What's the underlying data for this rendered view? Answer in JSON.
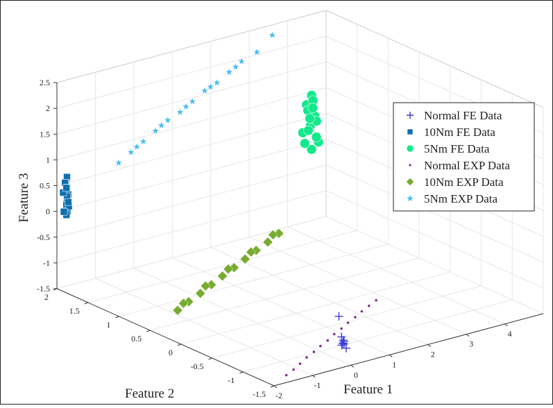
{
  "chart_data": {
    "type": "scatter",
    "projection": "3d",
    "grid": true,
    "legend_position": "top-right",
    "title": "",
    "xlabel": "Feature 1",
    "ylabel": "Feature 2",
    "zlabel": "Feature 3",
    "xlim": [
      -2,
      5
    ],
    "ylim": [
      -1.5,
      2
    ],
    "zlim": [
      -1.5,
      2.5
    ],
    "x_ticks": [
      "-2",
      "-1",
      "0",
      "1",
      "2",
      "3",
      "4"
    ],
    "y_ticks": [
      "-1.5",
      "-1",
      "-0.5",
      "0",
      "0.5",
      "1",
      "1.5",
      "2"
    ],
    "z_ticks": [
      "-1.5",
      "-1",
      "-0.5",
      "0",
      "0.5",
      "1",
      "1.5",
      "2",
      "2.5"
    ],
    "series": [
      {
        "name": "Normal FE Data",
        "marker": "plus",
        "color": "#3a3ad6",
        "points": [
          [
            -0.1,
            -1.45,
            -1.05
          ],
          [
            -0.05,
            -1.42,
            -1.12
          ],
          [
            -0.15,
            -1.47,
            -1.0
          ],
          [
            -0.08,
            -1.4,
            -1.15
          ],
          [
            -0.12,
            -1.44,
            -1.08
          ],
          [
            -0.06,
            -1.46,
            -1.18
          ],
          [
            -0.1,
            -1.41,
            -0.98
          ],
          [
            -0.2,
            -1.43,
            -0.55
          ]
        ]
      },
      {
        "name": "10Nm FE Data",
        "marker": "square",
        "color": "#0e6fae",
        "points": [
          [
            -1.9,
            1.9,
            0.7
          ],
          [
            -1.85,
            1.95,
            0.55
          ],
          [
            -1.95,
            1.85,
            0.4
          ],
          [
            -1.9,
            1.9,
            0.25
          ],
          [
            -1.8,
            1.97,
            0.1
          ],
          [
            -1.92,
            1.88,
            0.05
          ],
          [
            -1.88,
            1.92,
            -0.05
          ],
          [
            -1.85,
            1.93,
            0.3
          ],
          [
            -1.95,
            1.9,
            0.6
          ],
          [
            -1.82,
            1.95,
            0.45
          ],
          [
            -1.9,
            1.87,
            0.15
          ],
          [
            -1.87,
            1.98,
            0.35
          ],
          [
            -1.93,
            1.89,
            0.5
          ],
          [
            -1.85,
            1.91,
            0.2
          ],
          [
            -1.9,
            1.95,
            0.0
          ]
        ]
      },
      {
        "name": "5Nm FE Data",
        "marker": "circle",
        "color": "#12e98a",
        "points": [
          [
            4.3,
            1.8,
            1.1
          ],
          [
            4.25,
            1.85,
            0.9
          ],
          [
            4.35,
            1.78,
            0.7
          ],
          [
            4.3,
            1.82,
            0.5
          ],
          [
            4.2,
            1.88,
            0.35
          ],
          [
            4.4,
            1.75,
            0.2
          ],
          [
            4.3,
            1.8,
            0.05
          ],
          [
            4.25,
            1.83,
            0.8
          ],
          [
            4.38,
            1.77,
            0.6
          ],
          [
            4.28,
            1.84,
            0.4
          ],
          [
            4.32,
            1.79,
            1.0
          ],
          [
            4.22,
            1.86,
            0.15
          ],
          [
            4.36,
            1.76,
            0.3
          ],
          [
            4.27,
            1.81,
            0.65
          ],
          [
            4.33,
            1.8,
            0.85
          ]
        ]
      },
      {
        "name": "Normal EXP Data",
        "marker": "dot",
        "color": "#7e2f8e",
        "points": [
          [
            -1.6,
            -1.45,
            -1.4
          ],
          [
            -1.0,
            -1.3,
            -1.38
          ],
          [
            -0.4,
            -1.15,
            -1.35
          ],
          [
            0.2,
            -1.0,
            -1.33
          ],
          [
            0.8,
            -0.85,
            -1.3
          ],
          [
            1.4,
            -0.7,
            -1.28
          ],
          [
            2.0,
            -0.55,
            -1.26
          ],
          [
            -1.3,
            -1.38,
            -1.39
          ],
          [
            -0.7,
            -1.22,
            -1.36
          ],
          [
            -0.1,
            -1.07,
            -1.34
          ],
          [
            0.5,
            -0.92,
            -1.31
          ],
          [
            1.1,
            -0.77,
            -1.29
          ],
          [
            1.7,
            -0.62,
            -1.27
          ],
          [
            2.3,
            -0.48,
            -1.25
          ]
        ]
      },
      {
        "name": "10Nm EXP Data",
        "marker": "diamond",
        "color": "#77ac30",
        "points": [
          [
            -1.2,
            0.55,
            -1.3
          ],
          [
            -0.8,
            0.62,
            -1.25
          ],
          [
            -0.4,
            0.68,
            -1.2
          ],
          [
            0.0,
            0.75,
            -1.15
          ],
          [
            0.4,
            0.82,
            -1.1
          ],
          [
            0.8,
            0.88,
            -1.05
          ],
          [
            1.2,
            0.95,
            -1.0
          ],
          [
            1.6,
            1.02,
            -0.95
          ],
          [
            2.0,
            1.08,
            -0.9
          ],
          [
            2.4,
            1.15,
            -0.85
          ],
          [
            -1.0,
            0.58,
            -1.22
          ],
          [
            -0.2,
            0.72,
            -1.12
          ],
          [
            0.6,
            0.85,
            -1.02
          ],
          [
            1.4,
            0.98,
            -0.92
          ],
          [
            2.2,
            1.12,
            -0.82
          ]
        ]
      },
      {
        "name": "5Nm EXP Data",
        "marker": "star",
        "color": "#4dbeee",
        "points": [
          [
            -1.2,
            1.5,
            1.05
          ],
          [
            -0.8,
            1.55,
            1.15
          ],
          [
            -0.4,
            1.6,
            1.25
          ],
          [
            0.0,
            1.65,
            1.35
          ],
          [
            0.4,
            1.7,
            1.45
          ],
          [
            0.8,
            1.75,
            1.5
          ],
          [
            1.2,
            1.8,
            1.6
          ],
          [
            1.6,
            1.85,
            1.7
          ],
          [
            2.0,
            1.9,
            1.75
          ],
          [
            2.4,
            1.95,
            1.85
          ],
          [
            2.8,
            2.0,
            1.95
          ],
          [
            3.2,
            2.0,
            2.05
          ],
          [
            -0.6,
            1.58,
            1.2
          ],
          [
            0.2,
            1.68,
            1.4
          ],
          [
            1.0,
            1.78,
            1.55
          ],
          [
            1.8,
            1.88,
            1.72
          ],
          [
            2.6,
            1.97,
            1.9
          ],
          [
            3.6,
            2.0,
            2.3
          ]
        ]
      }
    ]
  }
}
